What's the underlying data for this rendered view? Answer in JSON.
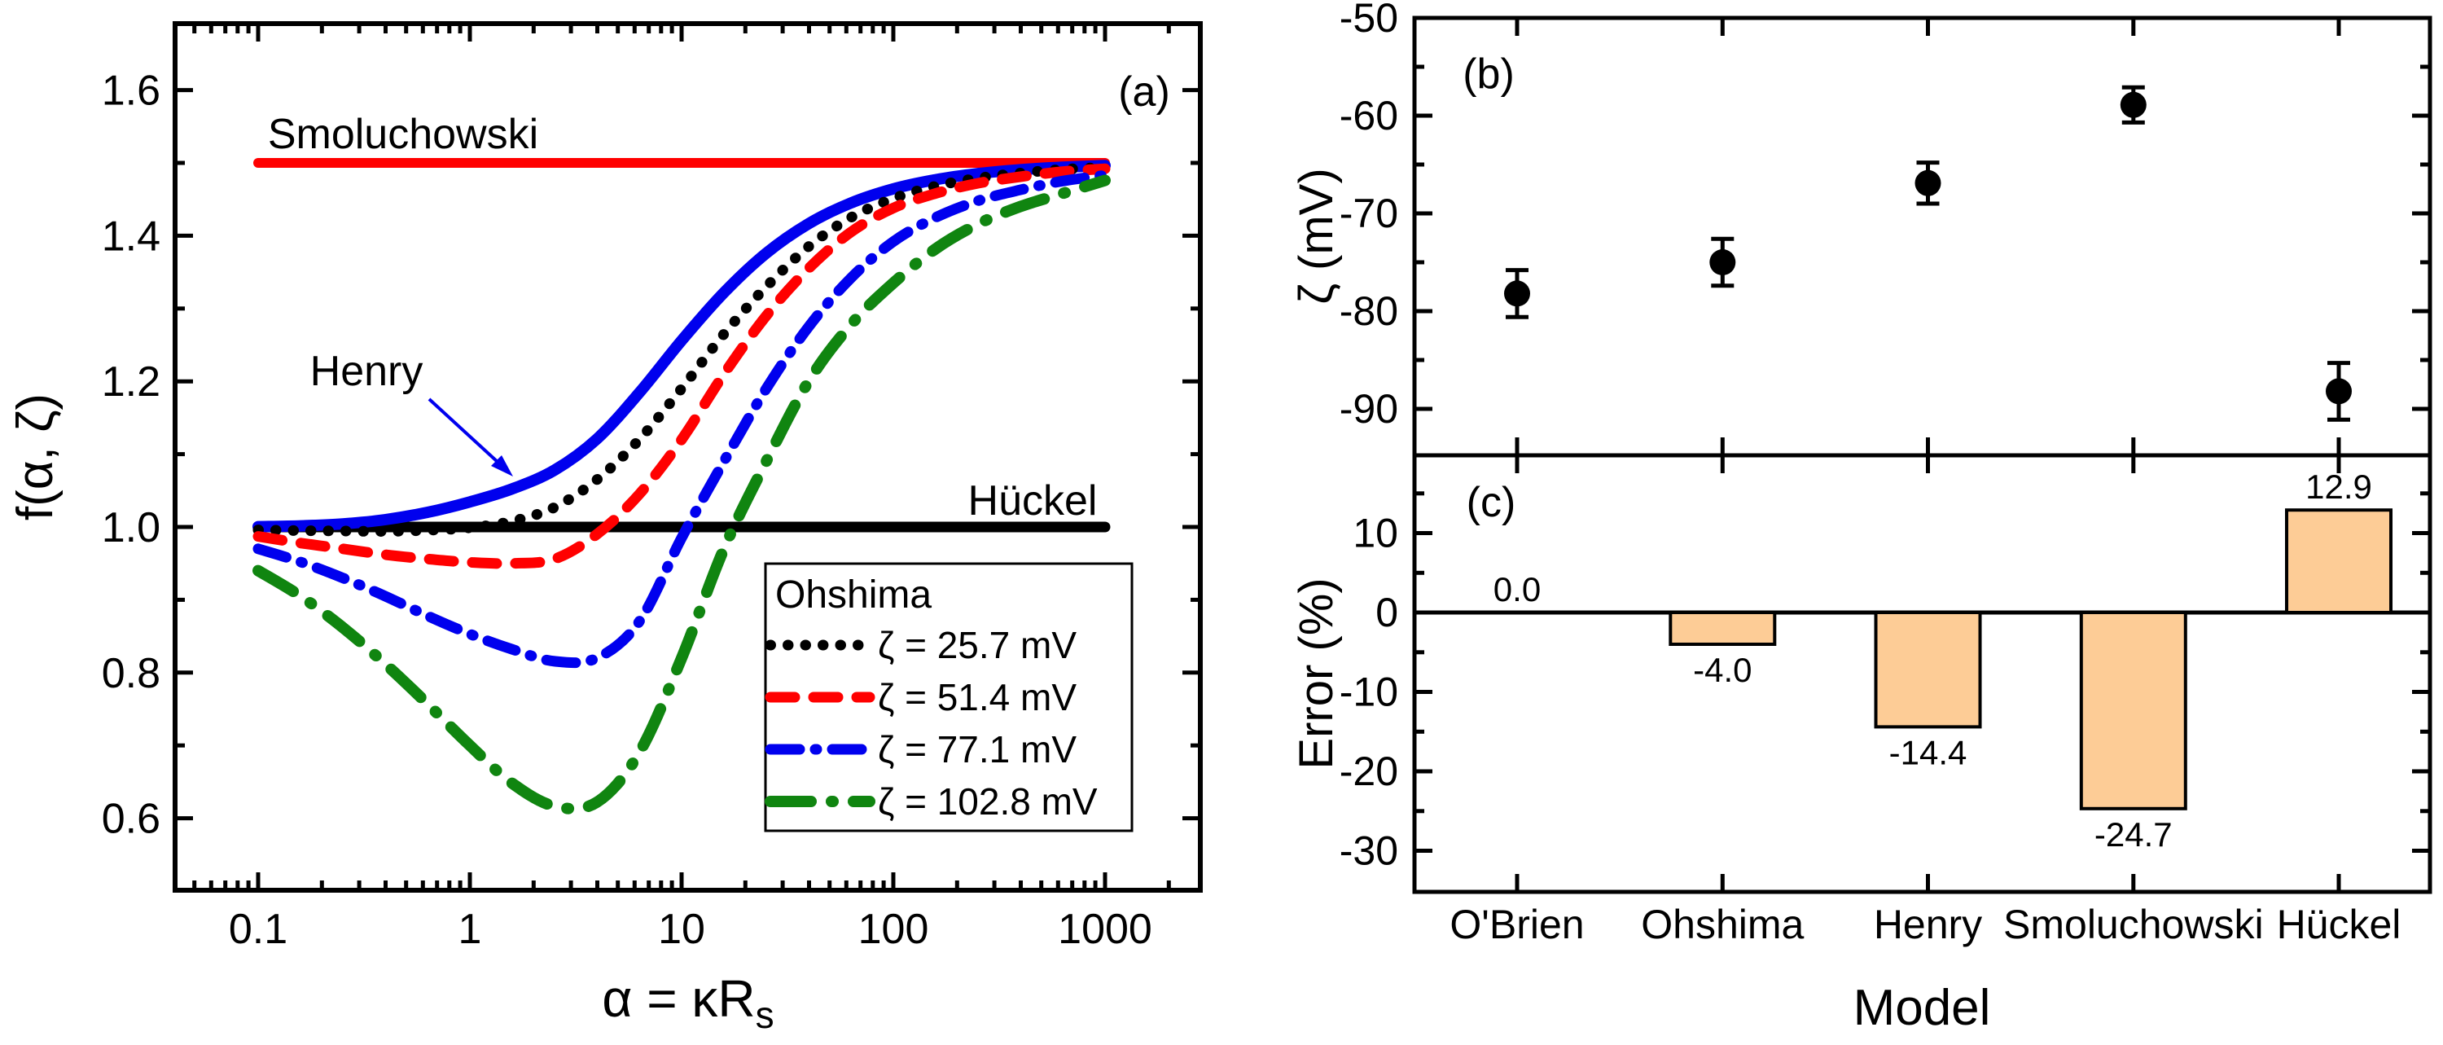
{
  "chart_data": [
    {
      "id": "a",
      "type": "line",
      "panel_tag": "(a)",
      "xlabel_main": "α = κR",
      "xlabel_sub": "s",
      "ylabel": "f(α, ζ)",
      "x_scale": "log",
      "xlim": [
        0.0405,
        2820
      ],
      "ylim": [
        0.501,
        1.691
      ],
      "x_major_ticks": [
        0.1,
        1,
        10,
        100,
        1000
      ],
      "x_tick_labels": [
        "0.1",
        "1",
        "10",
        "100",
        "1000"
      ],
      "y_major_ticks": [
        0.6,
        0.8,
        1.0,
        1.2,
        1.4,
        1.6
      ],
      "y_minor_ticks": [
        0.7,
        0.9,
        1.1,
        1.3,
        1.5
      ],
      "y_tick_labels": [
        "0.6",
        "0.8",
        "1.0",
        "1.2",
        "1.4",
        "1.6"
      ],
      "logx_grid": [
        -1,
        -0.8,
        -0.6,
        -0.4,
        -0.2,
        0,
        0.2,
        0.4,
        0.6,
        0.8,
        1,
        1.2,
        1.4,
        1.6,
        1.8,
        2,
        2.2,
        2.4,
        2.6,
        2.8,
        3
      ],
      "series": [
        {
          "name": "Smoluchowski",
          "style": "solid",
          "color": "#ff0000",
          "width": 12,
          "x": [
            0.1,
            1000
          ],
          "y": [
            1.5,
            1.5
          ]
        },
        {
          "name": "Hückel",
          "style": "solid",
          "color": "#000000",
          "width": 13,
          "x": [
            0.1,
            1000
          ],
          "y": [
            1.0,
            1.0
          ]
        },
        {
          "name": "Henry",
          "style": "solid",
          "color": "#0000ee",
          "width": 14,
          "y": [
            1.0005,
            1.0016,
            1.0043,
            1.0101,
            1.0201,
            1.0344,
            1.0524,
            1.0781,
            1.1208,
            1.1843,
            1.256,
            1.3218,
            1.3761,
            1.4166,
            1.445,
            1.4643,
            1.477,
            1.4853,
            1.4907,
            1.4941,
            1.4963
          ]
        },
        {
          "name": "Ohshima ζ = 25.7 mV",
          "style": "dot",
          "color": "#000000",
          "width": 13,
          "dash": "0.5 21",
          "y": [
            0.996,
            0.995,
            0.9945,
            0.994,
            0.9955,
            0.999,
            1.008,
            1.027,
            1.065,
            1.12,
            1.19,
            1.265,
            1.33,
            1.385,
            1.425,
            1.451,
            1.468,
            1.479,
            1.486,
            1.491,
            1.494
          ]
        },
        {
          "name": "Ohshima ζ = 51.4 mV",
          "style": "dash",
          "color": "#ff0000",
          "width": 13,
          "dash": "30 23",
          "y": [
            0.987,
            0.978,
            0.97,
            0.962,
            0.956,
            0.9515,
            0.95,
            0.956,
            0.99,
            1.045,
            1.12,
            1.21,
            1.29,
            1.355,
            1.405,
            1.438,
            1.458,
            1.472,
            1.481,
            1.488,
            1.492
          ]
        },
        {
          "name": "Ohshima ζ = 77.1 mV",
          "style": "dash-dot",
          "color": "#0000ee",
          "width": 13,
          "dash": "36 19 2 19",
          "y": [
            0.97,
            0.952,
            0.93,
            0.905,
            0.878,
            0.853,
            0.832,
            0.8155,
            0.82,
            0.87,
            0.985,
            1.09,
            1.19,
            1.275,
            1.342,
            1.392,
            1.425,
            1.448,
            1.463,
            1.475,
            1.483
          ]
        },
        {
          "name": "Ohshima ζ = 102.8 mV",
          "style": "long-dash-dot",
          "color": "#108510",
          "width": 14,
          "dash": "50 25 2 25",
          "y": [
            0.94,
            0.905,
            0.862,
            0.812,
            0.757,
            0.7,
            0.648,
            0.6165,
            0.622,
            0.69,
            0.82,
            0.97,
            1.09,
            1.2,
            1.278,
            1.335,
            1.382,
            1.416,
            1.44,
            1.458,
            1.476
          ]
        }
      ],
      "legend": {
        "title": "Ohshima",
        "entries": [
          {
            "label": "ζ = 25.7 mV",
            "color": "#000000",
            "dash": "0.5 21",
            "width": 13
          },
          {
            "label": "ζ = 51.4 mV",
            "color": "#ff0000",
            "dash": "30 23",
            "width": 13
          },
          {
            "label": "ζ = 77.1 mV",
            "color": "#0000ee",
            "dash": "36 19 2 19",
            "width": 13
          },
          {
            "label": "ζ = 102.8 mV",
            "color": "#108510",
            "dash": "50 25 2 25",
            "width": 14
          }
        ]
      },
      "annotations": [
        {
          "text": "Smoluchowski",
          "color": "#ff0000"
        },
        {
          "text": "Henry",
          "color": "#0000ee"
        },
        {
          "text": "Hückel",
          "color": "#000000"
        }
      ]
    },
    {
      "id": "b",
      "type": "scatter",
      "panel_tag": "(b)",
      "ylabel": "ζ (mV)",
      "categories": [
        "O'Brien",
        "Ohshima",
        "Henry",
        "Smoluchowski",
        "Hückel"
      ],
      "values": [
        -78.2,
        -75.0,
        -66.9,
        -58.9,
        -88.2
      ],
      "errors": [
        2.4,
        2.4,
        2.1,
        1.8,
        2.9
      ],
      "ylim": [
        -94.75,
        -50
      ],
      "y_major_ticks": [
        -50,
        -60,
        -70,
        -80,
        -90
      ],
      "y_minor_ticks": [
        -55,
        -65,
        -75,
        -85
      ],
      "y_tick_labels": [
        "-50",
        "-60",
        "-70",
        "-80",
        "-90"
      ],
      "marker_color": "#000000"
    },
    {
      "id": "c",
      "type": "bar",
      "panel_tag": "(c)",
      "xlabel": "Model",
      "ylabel": "Error (%)",
      "categories": [
        "O'Brien",
        "Ohshima",
        "Henry",
        "Smoluchowski",
        "Hückel"
      ],
      "values": [
        0.0,
        -4.0,
        -14.4,
        -24.7,
        12.9
      ],
      "value_labels": [
        "0.0",
        "-4.0",
        "-14.4",
        "-24.7",
        "12.9"
      ],
      "ylim": [
        -35.2,
        19.8
      ],
      "y_major_ticks": [
        10,
        0,
        -10,
        -20,
        -30
      ],
      "y_minor_ticks": [
        15,
        5,
        -5,
        -15,
        -25
      ],
      "y_tick_labels": [
        "10",
        "0",
        "-10",
        "-20",
        "-30"
      ],
      "bar_color": "#fdcc96",
      "bar_edge_color": "#000000",
      "zero_line": true
    }
  ]
}
